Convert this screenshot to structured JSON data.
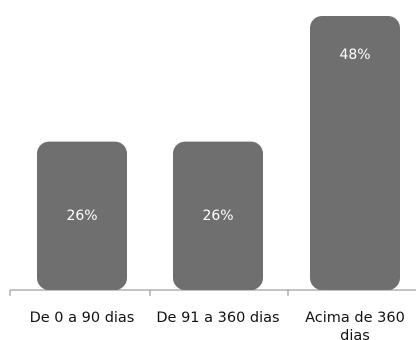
{
  "chart_data": {
    "type": "bar",
    "categories": [
      "De 0 a 90 dias",
      "De 91 a 360 dias",
      "Acima de 360 dias"
    ],
    "category_lines": [
      [
        "De 0 a 90 dias"
      ],
      [
        "De 91 a 360 dias"
      ],
      [
        "Acima de 360",
        "dias"
      ]
    ],
    "values": [
      26,
      26,
      48
    ],
    "value_labels": [
      "26%",
      "26%",
      "48%"
    ],
    "bar_color": "#6f6f6f",
    "axis_color": "#8a8a8a",
    "ylim": [
      0,
      48
    ],
    "grid": false,
    "legend": "none"
  }
}
